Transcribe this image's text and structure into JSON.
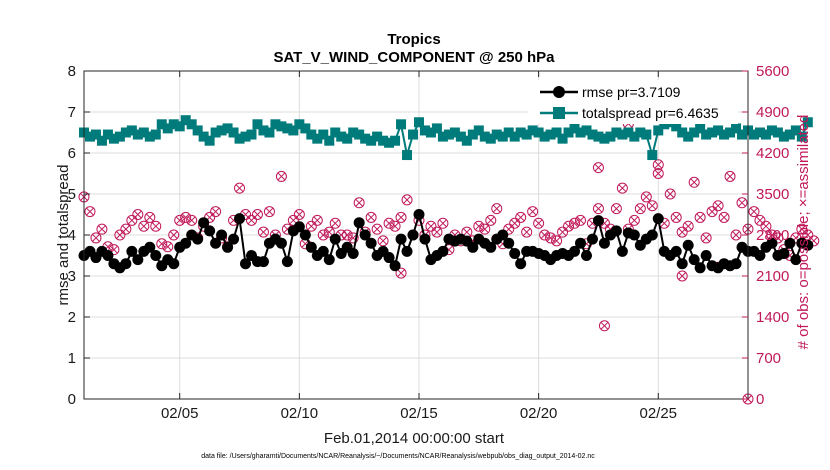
{
  "chart_data": {
    "type": "line",
    "title": "Tropics",
    "subtitle": "SAT_V_WIND_COMPONENT @ 250 hPa",
    "xlabel": "Feb.01,2014 00:00:00 start",
    "ylabel_left": "rmse and totalspread",
    "ylabel_right": "# of obs: o=possible; ×=assimilated",
    "footnote": "data file: /Users/gharamti/Documents/NCAR/Reanalysis/~/Documents/NCAR/Reanalysis/webpub/obs_diag_output_2014-02.nc",
    "xlim": [
      1,
      28.75
    ],
    "ylim_left": [
      0,
      8
    ],
    "ylim_right": [
      0,
      5600
    ],
    "x_ticks": [
      5,
      10,
      15,
      20,
      25
    ],
    "x_tick_labels": [
      "02/05",
      "02/10",
      "02/15",
      "02/20",
      "02/25"
    ],
    "y_left_ticks": [
      "0",
      "1",
      "2",
      "3",
      "4",
      "5",
      "6",
      "7",
      "8"
    ],
    "y_right_ticks": [
      "0",
      "700",
      "1400",
      "2100",
      "2800",
      "3500",
      "4200",
      "4900",
      "5600"
    ],
    "x_start": 1.0,
    "x_step": 0.25,
    "colors": {
      "rmse": "#000000",
      "totalspread": "#007b7b",
      "obs": "#c0195a"
    },
    "series": [
      {
        "name": "rmse",
        "legend": "rmse pr=3.7109",
        "values": [
          3.5,
          3.6,
          3.45,
          3.6,
          3.5,
          3.3,
          3.2,
          3.3,
          3.6,
          3.4,
          3.6,
          3.7,
          3.5,
          3.25,
          3.4,
          3.3,
          3.7,
          3.8,
          4.0,
          3.9,
          4.3,
          4.1,
          3.8,
          4.0,
          3.7,
          3.9,
          4.4,
          3.3,
          3.5,
          3.35,
          3.35,
          3.8,
          3.9,
          3.8,
          3.35,
          4.1,
          4.2,
          4.0,
          3.7,
          3.5,
          3.6,
          3.4,
          3.9,
          3.55,
          3.7,
          3.55,
          4.3,
          4.0,
          3.8,
          3.5,
          3.6,
          3.45,
          3.25,
          3.9,
          3.6,
          4.0,
          4.5,
          3.9,
          3.4,
          3.5,
          3.6,
          3.9,
          3.85,
          3.9,
          3.85,
          3.7,
          3.9,
          3.8,
          3.7,
          3.9,
          4.0,
          3.8,
          3.55,
          3.3,
          3.6,
          3.6,
          3.55,
          3.5,
          3.4,
          3.5,
          3.55,
          3.5,
          3.6,
          3.8,
          3.5,
          3.9,
          4.35,
          3.8,
          4.0,
          4.1,
          3.6,
          4.05,
          4.0,
          3.75,
          3.9,
          4.0,
          4.4,
          3.6,
          3.5,
          3.6,
          3.3,
          3.75,
          3.4,
          3.2,
          3.5,
          3.25,
          3.2,
          3.3,
          3.25,
          3.3,
          3.7,
          3.6,
          3.6,
          3.5,
          3.7,
          3.8,
          3.5,
          3.55,
          3.8,
          3.4,
          3.8,
          3.75
        ]
      },
      {
        "name": "totalspread",
        "legend": "totalspread pr=6.4635",
        "values": [
          6.5,
          6.4,
          6.45,
          6.3,
          6.45,
          6.35,
          6.4,
          6.5,
          6.55,
          6.45,
          6.5,
          6.4,
          6.45,
          6.7,
          6.6,
          6.7,
          6.65,
          6.8,
          6.7,
          6.55,
          6.4,
          6.3,
          6.5,
          6.55,
          6.6,
          6.5,
          6.35,
          6.4,
          6.45,
          6.7,
          6.55,
          6.5,
          6.7,
          6.65,
          6.6,
          6.55,
          6.7,
          6.6,
          6.45,
          6.35,
          6.45,
          6.3,
          6.5,
          6.4,
          6.35,
          6.5,
          6.45,
          6.35,
          6.3,
          6.4,
          6.3,
          6.25,
          6.3,
          6.7,
          5.95,
          6.45,
          6.75,
          6.55,
          6.5,
          6.6,
          6.4,
          6.45,
          6.5,
          6.4,
          6.3,
          6.45,
          6.55,
          6.4,
          6.35,
          6.45,
          6.4,
          6.5,
          6.4,
          6.5,
          6.45,
          6.55,
          6.5,
          6.4,
          6.45,
          6.5,
          6.35,
          6.5,
          6.6,
          6.5,
          6.55,
          6.45,
          6.4,
          6.35,
          6.4,
          6.5,
          6.45,
          6.5,
          6.4,
          6.5,
          6.45,
          5.95,
          6.55,
          6.7,
          6.75,
          6.65,
          6.5,
          6.4,
          6.5,
          6.6,
          6.45,
          6.5,
          6.55,
          6.45,
          6.5,
          6.6,
          6.45,
          6.55,
          6.45,
          6.5,
          6.45,
          6.55,
          6.5,
          6.4,
          6.45,
          6.55,
          6.4,
          6.75
        ]
      },
      {
        "name": "obs_possible",
        "marker": "circle-with-cross",
        "values": [
          3450,
          3200,
          2750,
          2900,
          2600,
          2550,
          2800,
          2900,
          3050,
          3150,
          2950,
          3100,
          2950,
          2650,
          2600,
          2800,
          3050,
          3100,
          3050,
          2750,
          2950,
          3100,
          3200,
          2750,
          2600,
          3050,
          3600,
          3150,
          3050,
          3150,
          2850,
          3200,
          2800,
          3800,
          2900,
          3050,
          3150,
          2650,
          2950,
          3050,
          2800,
          2850,
          3000,
          2800,
          2800,
          2750,
          3350,
          2850,
          3100,
          2900,
          2700,
          3000,
          2950,
          3100,
          3400,
          2800,
          3050,
          2800,
          2950,
          2850,
          3000,
          2550,
          2800,
          2700,
          2850,
          2700,
          2950,
          2900,
          3050,
          3250,
          2650,
          2900,
          3000,
          3100,
          2850,
          3200,
          3000,
          2800,
          2750,
          2700,
          2850,
          2950,
          3000,
          3050,
          2650,
          3000,
          3250,
          3000,
          2900,
          3250,
          3600,
          2900,
          3050,
          3250,
          3450,
          3300,
          3850,
          3000,
          3500,
          3100,
          2850,
          2950,
          3700,
          3100,
          2750,
          3200,
          3300,
          3100,
          3800,
          2800,
          3350,
          2900,
          3200,
          3050,
          2950,
          2800,
          2750,
          2550,
          2450,
          2750,
          2900,
          2800,
          2700
        ]
      },
      {
        "name": "obs_assimilated",
        "marker": "cross",
        "values": [
          3450,
          3200,
          2750,
          2900,
          2600,
          2550,
          2800,
          2900,
          3050,
          3150,
          2950,
          3100,
          2950,
          2650,
          2600,
          2800,
          3050,
          3100,
          3050,
          2750,
          2950,
          3100,
          3200,
          2750,
          2600,
          3050,
          3600,
          3150,
          3050,
          3150,
          2850,
          3200,
          2800,
          3800,
          2900,
          3050,
          3150,
          2650,
          2950,
          3050,
          2800,
          2850,
          3000,
          2800,
          2800,
          2750,
          3350,
          2850,
          3100,
          2900,
          2700,
          3000,
          2950,
          3100,
          3400,
          2800,
          3050,
          2800,
          2950,
          2850,
          3000,
          2550,
          2800,
          2700,
          2850,
          2700,
          2950,
          2900,
          3050,
          3250,
          2650,
          2900,
          3000,
          3100,
          2850,
          3200,
          3000,
          2800,
          2750,
          2700,
          2850,
          2950,
          3000,
          3050,
          2650,
          3000,
          3250,
          3000,
          2900,
          3250,
          3600,
          2900,
          3050,
          3250,
          3450,
          3300,
          3850,
          3000,
          3500,
          3100,
          2850,
          2950,
          3700,
          3100,
          2750,
          3200,
          3300,
          3100,
          3800,
          2800,
          3350,
          2900,
          3200,
          3050,
          2950,
          2800,
          2750,
          2550,
          2450,
          2750,
          2900,
          2800,
          2700
        ]
      }
    ],
    "obs_extra_points": [
      {
        "x": 14.25,
        "y": 2150
      },
      {
        "x": 22.75,
        "y": 1250
      },
      {
        "x": 22.5,
        "y": 3950
      },
      {
        "x": 25.0,
        "y": 4000
      },
      {
        "x": 23.75,
        "y": 4700
      },
      {
        "x": 27.5,
        "y": 2250
      },
      {
        "x": 26.0,
        "y": 2100
      },
      {
        "x": 28.75,
        "y": 0
      }
    ]
  }
}
